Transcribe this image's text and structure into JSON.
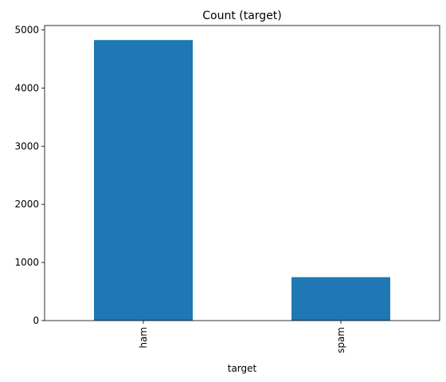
{
  "chart_data": {
    "type": "bar",
    "title": "Count (target)",
    "xlabel": "target",
    "ylabel": "",
    "categories": [
      "ham",
      "spam"
    ],
    "values": [
      4825,
      747
    ],
    "ylim": [
      0,
      5075
    ],
    "yticks": [
      0,
      1000,
      2000,
      3000,
      4000,
      5000
    ],
    "ytick_labels": [
      "0",
      "1000",
      "2000",
      "3000",
      "4000",
      "5000"
    ],
    "bar_color": "#1f77b4",
    "grid": false,
    "legend": "none"
  }
}
